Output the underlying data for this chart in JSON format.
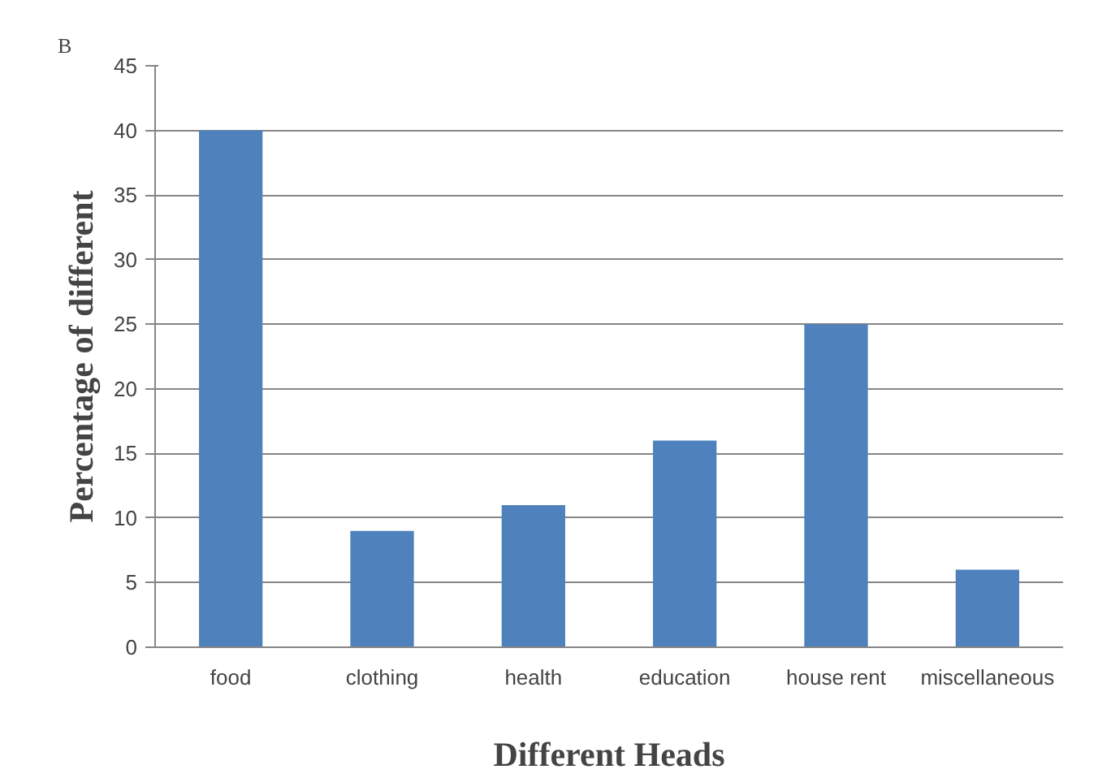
{
  "chart_data": {
    "type": "bar",
    "xlabel": "Different Heads",
    "ylabel": "Percentage of different",
    "annotations": [
      "B"
    ],
    "categories": [
      "food",
      "clothing",
      "health",
      "education",
      "house rent",
      "miscellaneous"
    ],
    "values": [
      40,
      9,
      11,
      16,
      25,
      6
    ],
    "color": "#4f81bd",
    "ylim": [
      0,
      45
    ],
    "yticks": [
      0,
      5,
      10,
      15,
      20,
      25,
      30,
      35,
      40,
      45
    ],
    "grid": "y"
  }
}
